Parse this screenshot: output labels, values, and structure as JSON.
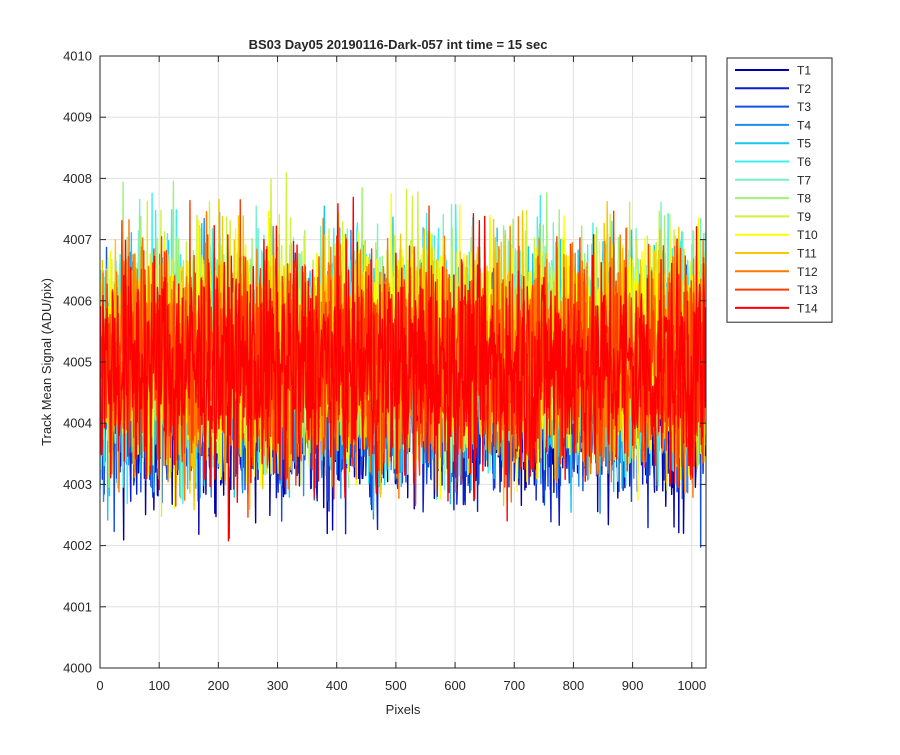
{
  "chart_data": {
    "type": "line",
    "title": "BS03 Day05 20190116-Dark-057 int time = 15 sec",
    "xlabel": "Pixels",
    "ylabel": "Track Mean Signal (ADU/pix)",
    "xlim": [
      0,
      1024
    ],
    "ylim": [
      4000,
      4010
    ],
    "xticks": [
      0,
      100,
      200,
      300,
      400,
      500,
      600,
      700,
      800,
      900,
      1000
    ],
    "yticks": [
      4000,
      4001,
      4002,
      4003,
      4004,
      4005,
      4006,
      4007,
      4008,
      4009,
      4010
    ],
    "grid": true,
    "legend": "outside-top-right",
    "n_points": 1024,
    "series": [
      {
        "name": "T1",
        "color": "#0000a8",
        "mean": 4004.3,
        "spread": 0.85
      },
      {
        "name": "T2",
        "color": "#0a1fc8",
        "mean": 4004.4,
        "spread": 0.85
      },
      {
        "name": "T3",
        "color": "#1450e0",
        "mean": 4004.5,
        "spread": 0.85
      },
      {
        "name": "T4",
        "color": "#1e8cf0",
        "mean": 4004.8,
        "spread": 0.9
      },
      {
        "name": "T5",
        "color": "#14c8f0",
        "mean": 4005.0,
        "spread": 0.95
      },
      {
        "name": "T6",
        "color": "#3cf0f0",
        "mean": 4005.2,
        "spread": 0.95
      },
      {
        "name": "T7",
        "color": "#78f0c8",
        "mean": 4005.3,
        "spread": 0.95
      },
      {
        "name": "T8",
        "color": "#a0f078",
        "mean": 4005.3,
        "spread": 0.95
      },
      {
        "name": "T9",
        "color": "#d2f03c",
        "mean": 4005.3,
        "spread": 0.95
      },
      {
        "name": "T10",
        "color": "#ffff00",
        "mean": 4005.2,
        "spread": 0.95
      },
      {
        "name": "T11",
        "color": "#f5c800",
        "mean": 4005.1,
        "spread": 0.95
      },
      {
        "name": "T12",
        "color": "#ff7800",
        "mean": 4005.1,
        "spread": 0.95
      },
      {
        "name": "T13",
        "color": "#ff3c00",
        "mean": 4005.0,
        "spread": 0.95
      },
      {
        "name": "T14",
        "color": "#ff0000",
        "mean": 4004.9,
        "spread": 0.95
      }
    ]
  }
}
